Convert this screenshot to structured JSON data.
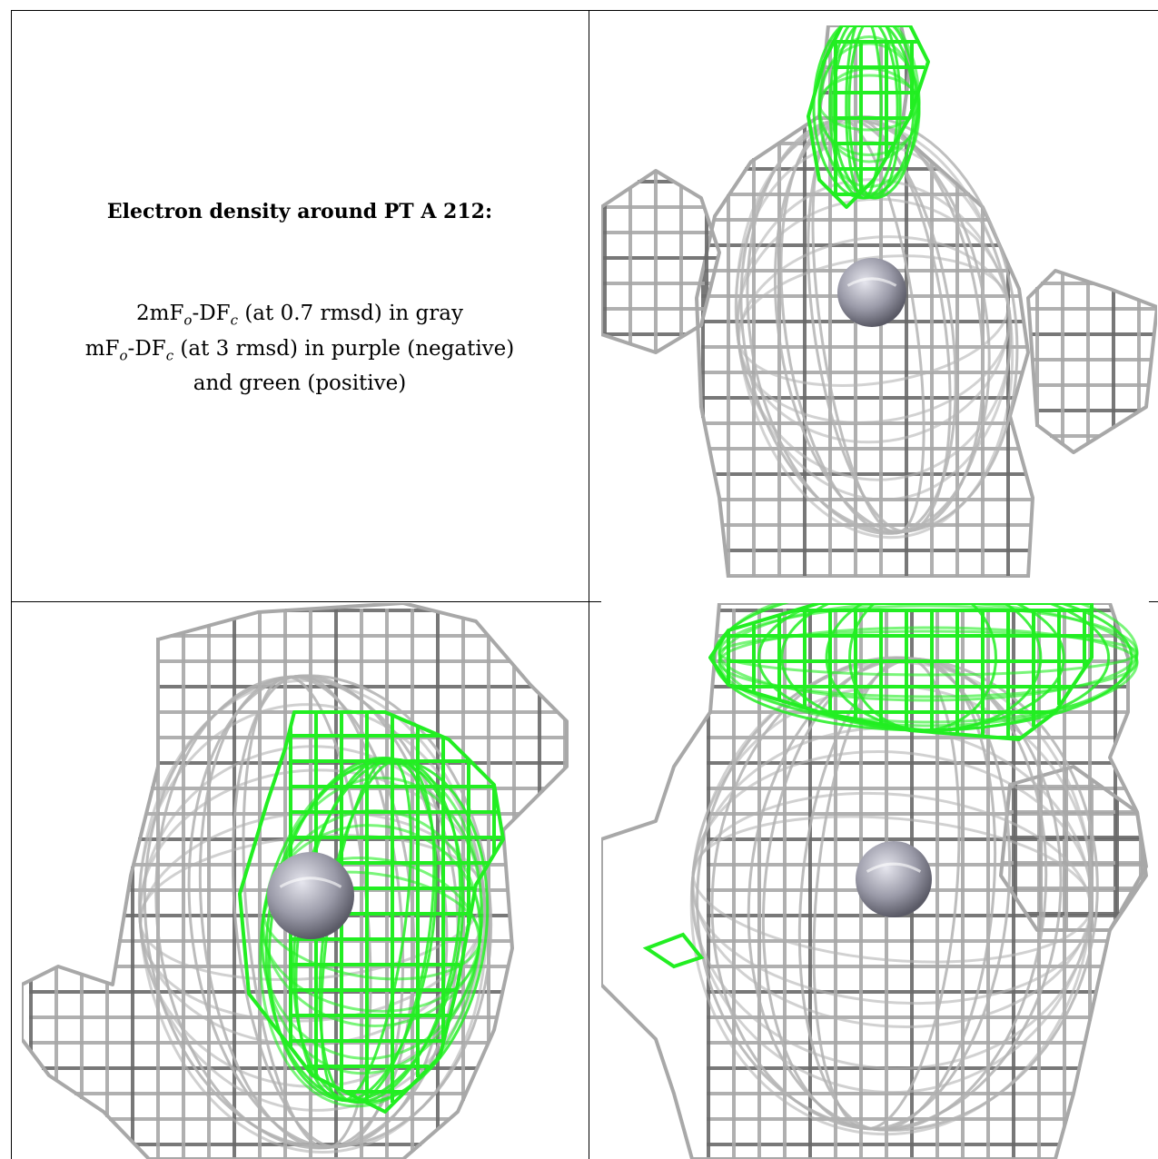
{
  "caption": {
    "title": "Electron density around PT A 212:",
    "line1_prefix": "2mF",
    "line1_sub1": "o",
    "line1_mid": "-DF",
    "line1_sub2": "c",
    "line1_suffix": " (at 0.7 rmsd) in gray",
    "line2_prefix": "mF",
    "line2_sub1": "o",
    "line2_mid": "-DF",
    "line2_sub2": "c",
    "line2_suffix": " (at 3 rmsd) in purple (negative)",
    "line3": "and green (positive)"
  },
  "colors": {
    "map_2fofc": "#a8a8a8",
    "map_2fofc_dark": "#6a6a6a",
    "map_fofc_positive": "#22ee22",
    "atom": "#9a9aa8"
  },
  "panels": [
    {
      "name": "view-top-right",
      "atom": "PT"
    },
    {
      "name": "view-bottom-left",
      "atom": "PT"
    },
    {
      "name": "view-bottom-right",
      "atom": "PT"
    }
  ]
}
